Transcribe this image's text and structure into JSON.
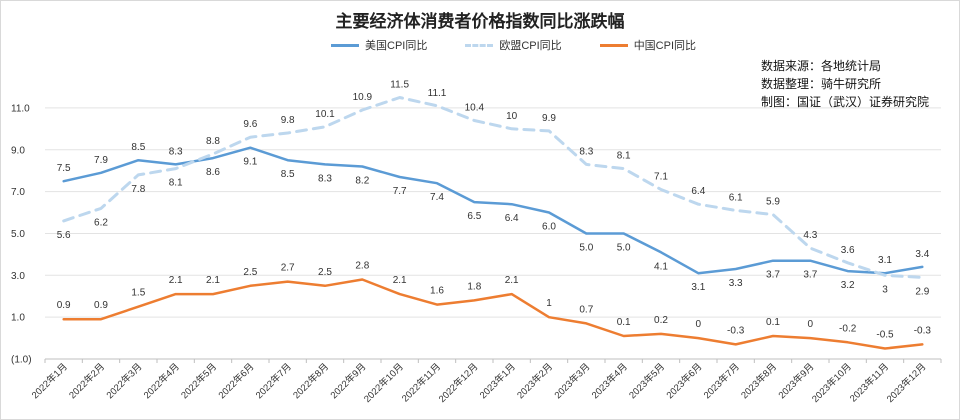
{
  "chart_data": {
    "type": "line",
    "title": "主要经济体消费者价格指数同比涨跌幅",
    "categories": [
      "2022年1月",
      "2022年2月",
      "2022年3月",
      "2022年4月",
      "2022年5月",
      "2022年6月",
      "2022年7月",
      "2022年8月",
      "2022年9月",
      "2022年10月",
      "2022年11月",
      "2022年12月",
      "2023年1月",
      "2023年2月",
      "2023年3月",
      "2023年4月",
      "2023年5月",
      "2023年6月",
      "2023年7月",
      "2023年8月",
      "2023年9月",
      "2023年10月",
      "2023年11月",
      "2023年12月"
    ],
    "series": [
      {
        "name": "美国CPI同比",
        "color": "#5b9bd5",
        "style": "solid",
        "values": [
          7.5,
          7.9,
          8.5,
          8.3,
          8.6,
          9.1,
          8.5,
          8.3,
          8.2,
          7.7,
          7.4,
          6.5,
          6.4,
          6.0,
          5.0,
          5.0,
          4.1,
          3.1,
          3.3,
          3.7,
          3.7,
          3.2,
          3.1,
          3.4
        ],
        "labels": [
          "7.5",
          "7.9",
          "8.5",
          "8.3",
          "8.6",
          "9.1",
          "8.5",
          "8.3",
          "8.2",
          "7.7",
          "7.4",
          "6.5",
          "6.4",
          "6.0",
          "5.0",
          "5.0",
          "4.1",
          "3.1",
          "3.3",
          "3.7",
          "3.7",
          "3.2",
          "3.1",
          "3.4"
        ]
      },
      {
        "name": "欧盟CPI同比",
        "color": "#bdd7ee",
        "style": "dashed",
        "values": [
          5.6,
          6.2,
          7.8,
          8.1,
          8.8,
          9.6,
          9.8,
          10.1,
          10.9,
          11.5,
          11.1,
          10.4,
          10,
          9.9,
          8.3,
          8.1,
          7.1,
          6.4,
          6.1,
          5.9,
          4.3,
          3.6,
          3,
          2.9
        ],
        "labels": [
          "5.6",
          "6.2",
          "7.8",
          "8.1",
          "8.8",
          "9.6",
          "9.8",
          "10.1",
          "10.9",
          "11.5",
          "11.1",
          "10.4",
          "10",
          "9.9",
          "8.3",
          "8.1",
          "7.1",
          "6.4",
          "6.1",
          "5.9",
          "4.3",
          "3.6",
          "3",
          "2.9"
        ]
      },
      {
        "name": "中国CPI同比",
        "color": "#ed7d31",
        "style": "solid",
        "values": [
          0.9,
          0.9,
          1.5,
          2.1,
          2.1,
          2.5,
          2.7,
          2.5,
          2.8,
          2.1,
          1.6,
          1.8,
          2.1,
          1,
          0.7,
          0.1,
          0.2,
          0,
          -0.3,
          0.1,
          0,
          -0.2,
          -0.5,
          -0.3
        ],
        "labels": [
          "0.9",
          "0.9",
          "1.5",
          "2.1",
          "2.1",
          "2.5",
          "2.7",
          "2.5",
          "2.8",
          "2.1",
          "1.6",
          "1.8",
          "2.1",
          "1",
          "0.7",
          "0.1",
          "0.2",
          "0",
          "-0.3",
          "0.1",
          "0",
          "-0.2",
          "-0.5",
          "-0.3"
        ]
      }
    ],
    "yticks": [
      "11.0",
      "9.0",
      "7.0",
      "5.0",
      "3.0",
      "1.0",
      "(1.0)"
    ],
    "ytick_values": [
      11,
      9,
      7,
      5,
      3,
      1,
      -1
    ],
    "ylim": [
      -1,
      12
    ],
    "grid": true,
    "legend": "top-center",
    "negative_tick_color": "#c00000"
  },
  "source_lines": [
    "数据来源：各地统计局",
    "数据整理：骑牛研究所",
    "制图：国证（武汉）证券研究院"
  ]
}
